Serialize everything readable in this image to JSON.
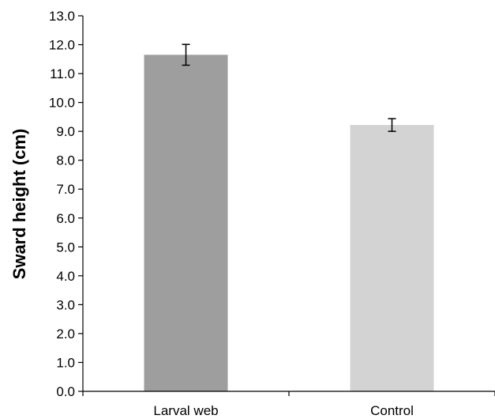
{
  "chart_data": {
    "type": "bar",
    "title": "",
    "xlabel": "",
    "ylabel": "Sward height (cm)",
    "categories": [
      "Larval web",
      "Control"
    ],
    "values": [
      11.65,
      9.22
    ],
    "error": [
      0.36,
      0.22
    ],
    "colors": [
      "#9e9e9e",
      "#d3d3d3"
    ],
    "ylim": [
      0,
      13
    ],
    "ytick_step": 1.0,
    "ytick_labels": [
      "0.0",
      "1.0",
      "2.0",
      "3.0",
      "4.0",
      "5.0",
      "6.0",
      "7.0",
      "8.0",
      "9.0",
      "10.0",
      "11.0",
      "12.0",
      "13.0"
    ],
    "grid": false,
    "legend": "none"
  }
}
